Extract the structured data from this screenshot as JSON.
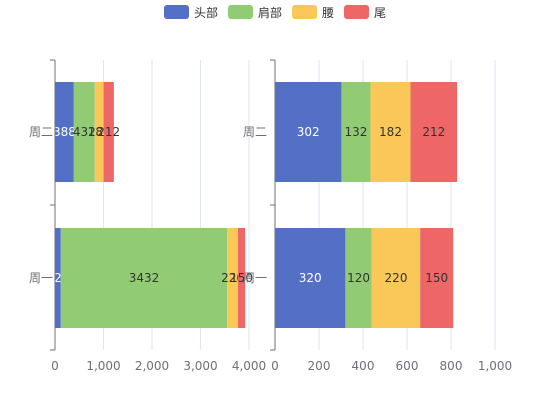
{
  "colors": {
    "head": "#5470c6",
    "shoulder": "#91cc75",
    "waist": "#fac858",
    "tail": "#ee6666"
  },
  "chart_data": [
    {
      "type": "bar",
      "orientation": "horizontal",
      "stacked": true,
      "categories": [
        "周一",
        "周二"
      ],
      "series": [
        {
          "name": "头部",
          "values": [
            120,
            388
          ]
        },
        {
          "name": "肩部",
          "values": [
            3432,
            432
          ]
        },
        {
          "name": "腰",
          "values": [
            220,
            182
          ]
        },
        {
          "name": "尾",
          "values": [
            150,
            212
          ]
        }
      ],
      "data_labels": [
        [
          "120",
          "3432",
          "220",
          "150"
        ],
        [
          "388",
          "432",
          "182",
          "212"
        ]
      ],
      "xlim": [
        0,
        4000
      ],
      "xticks": [
        "0",
        "1,000",
        "2,000",
        "3,000",
        "4,000"
      ]
    },
    {
      "type": "bar",
      "orientation": "horizontal",
      "stacked": true,
      "categories": [
        "周一",
        "周二"
      ],
      "series": [
        {
          "name": "头部",
          "values": [
            320,
            302
          ]
        },
        {
          "name": "肩部",
          "values": [
            120,
            132
          ]
        },
        {
          "name": "腰",
          "values": [
            220,
            182
          ]
        },
        {
          "name": "尾",
          "values": [
            150,
            212
          ]
        }
      ],
      "data_labels": [
        [
          "320",
          "120",
          "220",
          "150"
        ],
        [
          "302",
          "132",
          "182",
          "212"
        ]
      ],
      "xlim": [
        0,
        1000
      ],
      "xticks": [
        "0",
        "200",
        "400",
        "600",
        "800",
        "1,000"
      ]
    }
  ],
  "legend": [
    "头部",
    "肩部",
    "腰",
    "尾"
  ]
}
